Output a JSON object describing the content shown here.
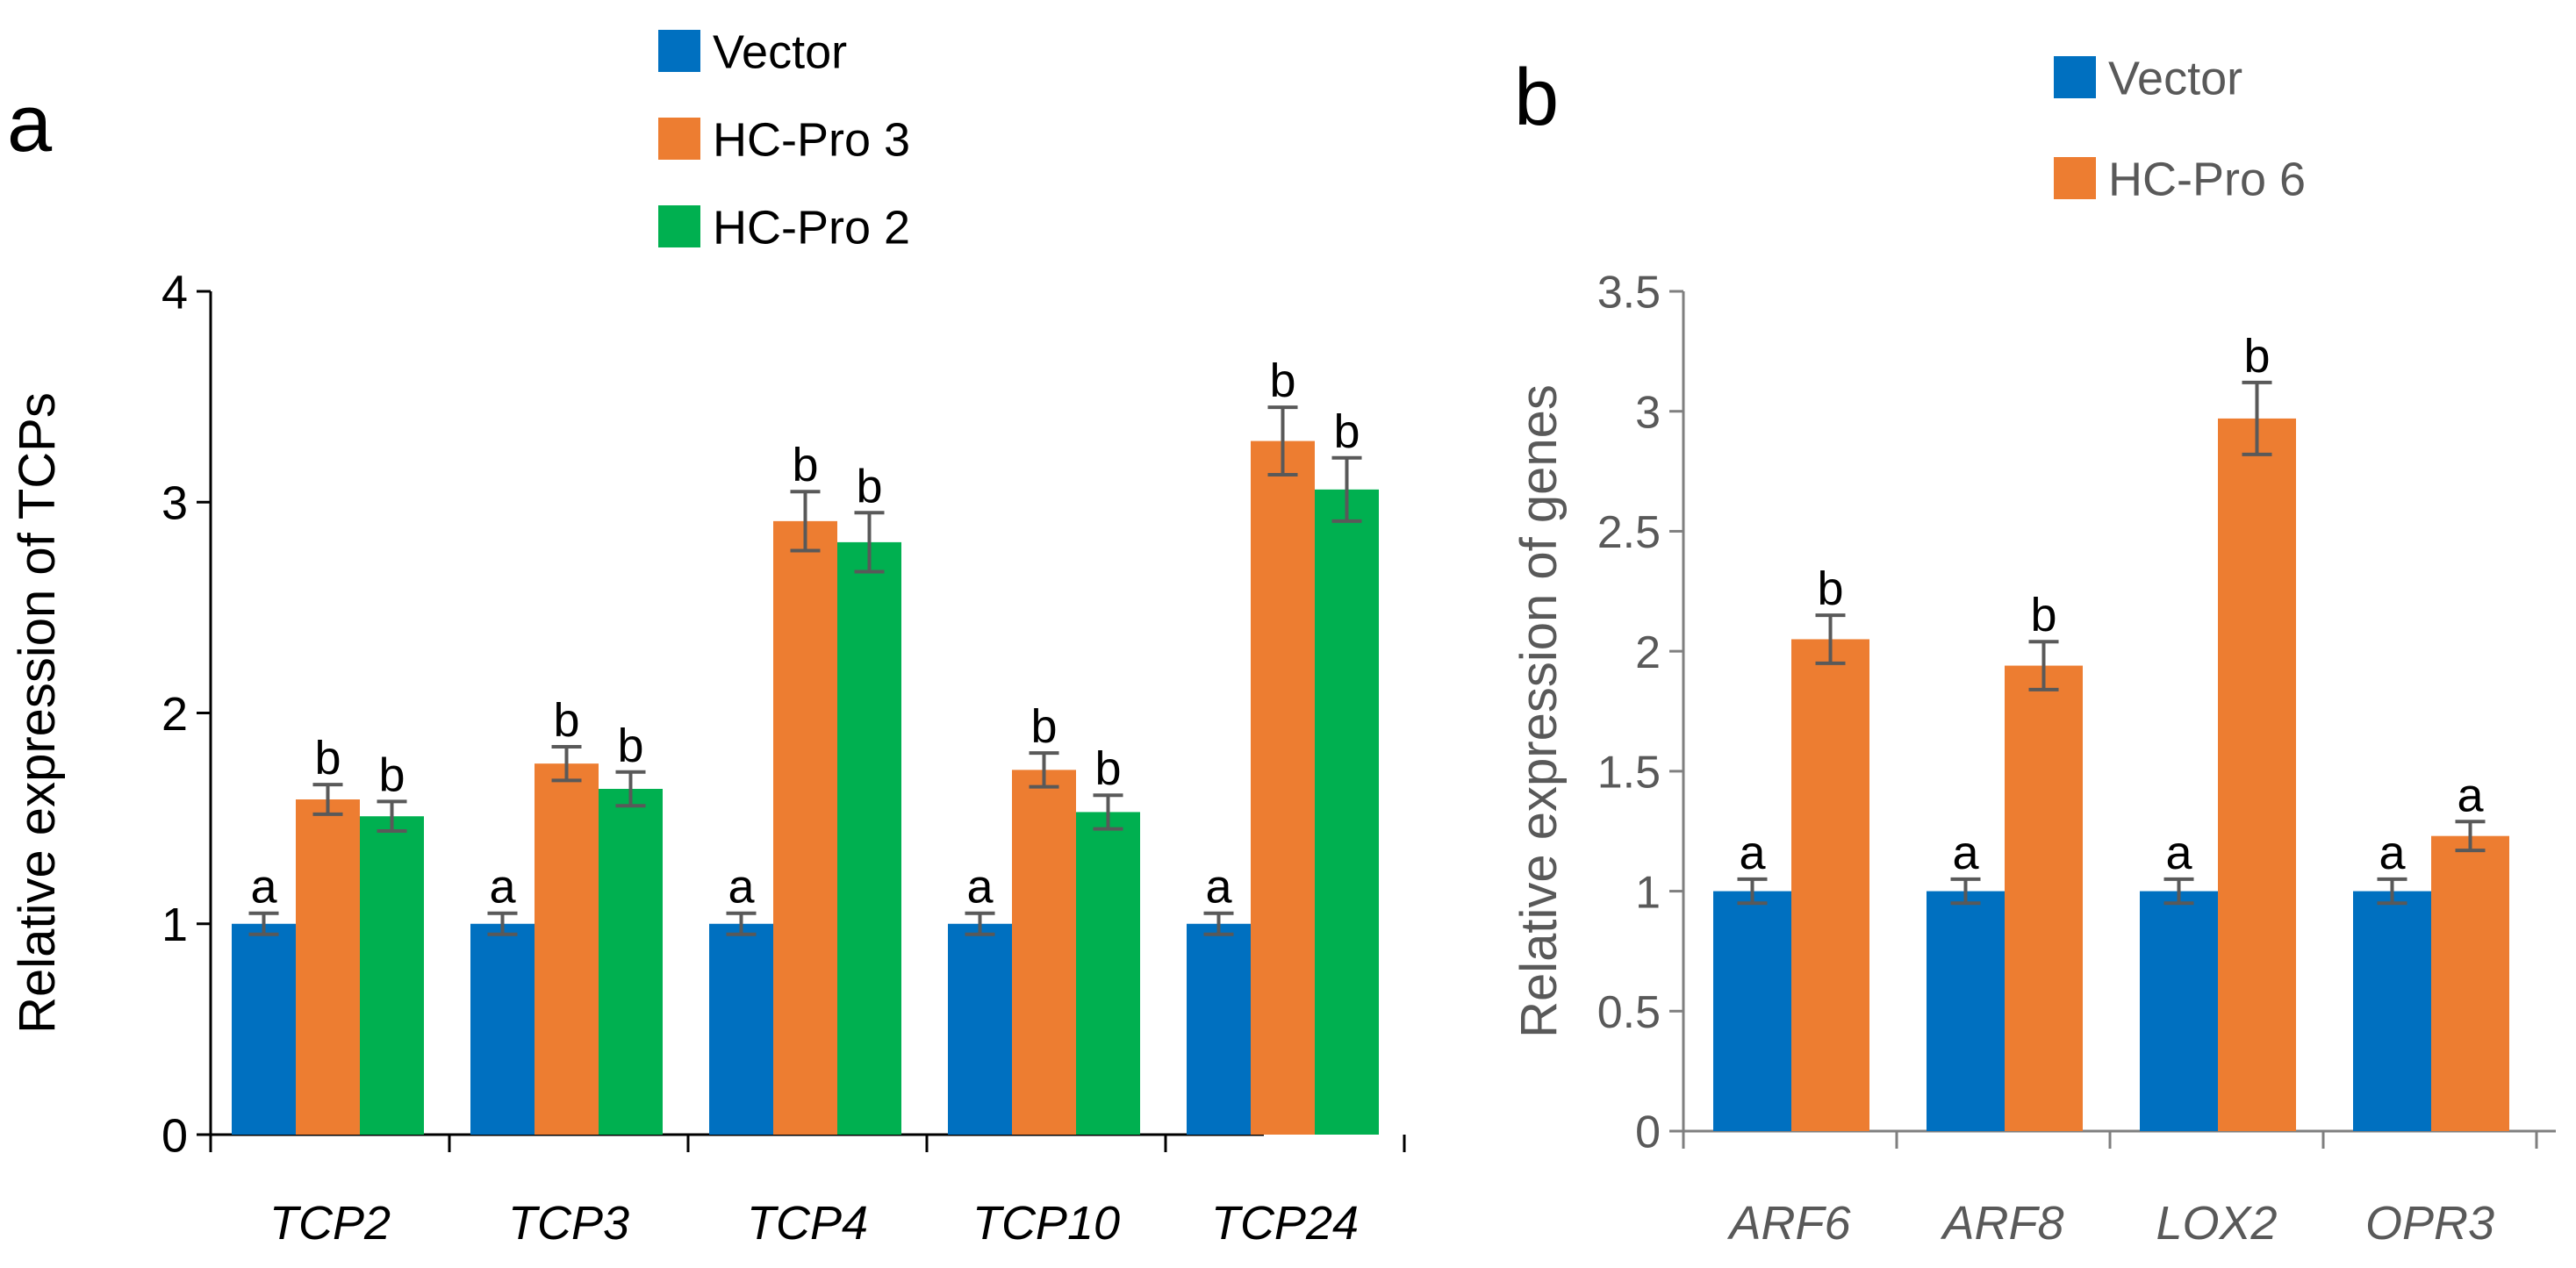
{
  "chart_data": [
    {
      "panel": "a",
      "type": "bar",
      "ylabel": "Relative expression of TCPs",
      "xlabel": "",
      "ylim": [
        0,
        4
      ],
      "yticks": [
        "0",
        "1",
        "2",
        "3",
        "4"
      ],
      "categories": [
        "TCP2",
        "TCP3",
        "TCP4",
        "TCP10",
        "TCP24"
      ],
      "legend_position": "top-center",
      "series": [
        {
          "name": "Vector",
          "color": "#0070C0",
          "values": [
            1,
            1,
            1,
            1,
            1
          ],
          "errors": [
            0.05,
            0.05,
            0.05,
            0.05,
            0.05
          ],
          "letters": [
            "a",
            "a",
            "a",
            "a",
            "a"
          ]
        },
        {
          "name": "HC-Pro 3",
          "color": "#ED7D31",
          "values": [
            1.59,
            1.76,
            2.91,
            1.73,
            3.29
          ],
          "errors": [
            0.07,
            0.08,
            0.14,
            0.08,
            0.16
          ],
          "letters": [
            "b",
            "b",
            "b",
            "b",
            "b"
          ]
        },
        {
          "name": "HC-Pro 2",
          "color": "#00B050",
          "values": [
            1.51,
            1.64,
            2.81,
            1.53,
            3.06
          ],
          "errors": [
            0.07,
            0.08,
            0.14,
            0.08,
            0.15
          ],
          "letters": [
            "b",
            "b",
            "b",
            "b",
            "b"
          ]
        }
      ]
    },
    {
      "panel": "b",
      "type": "bar",
      "ylabel": "Relative expression of genes",
      "xlabel": "",
      "ylim": [
        0,
        3.5
      ],
      "yticks": [
        "0",
        "0.5",
        "1",
        "1.5",
        "2",
        "2.5",
        "3",
        "3.5"
      ],
      "categories": [
        "ARF6",
        "ARF8",
        "LOX2",
        "OPR3"
      ],
      "legend_position": "top-center",
      "series": [
        {
          "name": "Vector",
          "color": "#0070C0",
          "values": [
            1,
            1,
            1,
            1
          ],
          "errors": [
            0.05,
            0.05,
            0.05,
            0.05
          ],
          "letters": [
            "a",
            "a",
            "a",
            "a"
          ]
        },
        {
          "name": "HC-Pro 6",
          "color": "#ED7D31",
          "values": [
            2.05,
            1.94,
            2.97,
            1.23
          ],
          "errors": [
            0.1,
            0.1,
            0.15,
            0.06
          ],
          "letters": [
            "b",
            "b",
            "b",
            "a"
          ]
        }
      ]
    }
  ]
}
